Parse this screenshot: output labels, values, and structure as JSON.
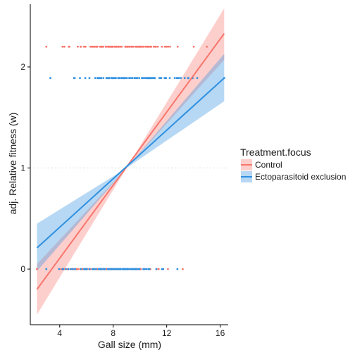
{
  "chart_data": {
    "type": "line",
    "xlabel": "Gall size (mm)",
    "ylabel": "adj. Relative fitness (w)",
    "xlim": [
      1.8,
      16.6
    ],
    "ylim": [
      -0.55,
      2.62
    ],
    "x_ticks": [
      4,
      8,
      12,
      16
    ],
    "x_tick_labels": [
      "4",
      "8",
      "12",
      "16"
    ],
    "y_ticks": [
      0,
      1,
      2
    ],
    "y_tick_labels": [
      "0",
      "1",
      "2"
    ],
    "reference_line_y": 1,
    "grid": false,
    "legend": {
      "title": "Treatment.focus",
      "placement": "right",
      "entries": [
        "Control",
        "Ectoparasitoid exclusion"
      ]
    },
    "series": [
      {
        "name": "Control",
        "color": "#F8766D",
        "fit_line": {
          "x": [
            2.3,
            16.3
          ],
          "y": [
            -0.2,
            2.33
          ]
        },
        "confidence_band": {
          "x": [
            2.3,
            9.0,
            16.3
          ],
          "lower": [
            -0.45,
            1.0,
            2.07
          ],
          "upper": [
            0.05,
            1.0,
            2.58
          ]
        },
        "points": [
          {
            "y": 2.2,
            "x_min": 3.0,
            "x_max": 15.0
          },
          {
            "y": 0.0,
            "x_min": 2.3,
            "x_max": 13.2
          }
        ]
      },
      {
        "name": "Ectoparasitoid exclusion",
        "color": "#2E8FE0",
        "fit_line": {
          "x": [
            2.3,
            16.3
          ],
          "y": [
            0.21,
            1.89
          ]
        },
        "confidence_band": {
          "x": [
            2.3,
            9.0,
            16.3
          ],
          "lower": [
            -0.02,
            1.0,
            1.66
          ],
          "upper": [
            0.45,
            1.0,
            2.13
          ]
        },
        "points": [
          {
            "y": 1.89,
            "x_min": 3.3,
            "x_max": 16.3
          },
          {
            "y": 0.0,
            "x_min": 3.0,
            "x_max": 12.8
          }
        ]
      }
    ]
  }
}
